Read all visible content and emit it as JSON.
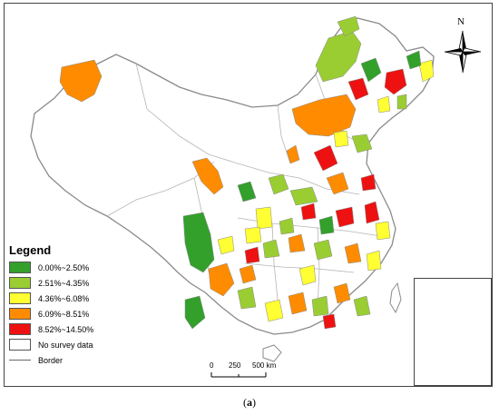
{
  "legend": {
    "title": "Legend",
    "items": [
      {
        "label": "0.00%~2.50%",
        "color": "#33a02c"
      },
      {
        "label": "2.51%~4.35%",
        "color": "#9acd32"
      },
      {
        "label": "4.36%~6.08%",
        "color": "#ffff33"
      },
      {
        "label": "6.09%~8.51%",
        "color": "#ff8c00"
      },
      {
        "label": "8.52%~14.50%",
        "color": "#ee1111"
      },
      {
        "label": "No survey data",
        "color": "#ffffff"
      }
    ],
    "border_label": "Border"
  },
  "scale_bar": {
    "ticks": [
      "0",
      "250",
      "500 km"
    ]
  },
  "north_arrow": {
    "label": "N",
    "icon": "compass-rose-icon"
  },
  "caption": {
    "open": "(",
    "letter": "a",
    "close": ")"
  },
  "colors": {
    "outline": "#8a8a8a",
    "frame": "#444444",
    "province": "#b5b5b5"
  }
}
